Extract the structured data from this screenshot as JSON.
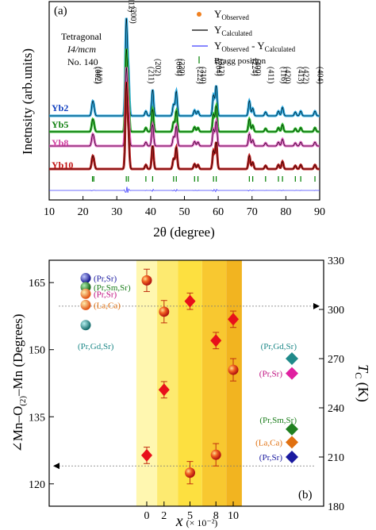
{
  "chart_data": [
    {
      "type": "line",
      "panel_label": "(a)",
      "xlabel": "2θ (degree)",
      "ylabel": "Inetnsity (arb.units)",
      "xlim": [
        10,
        90
      ],
      "xticks": [
        10,
        20,
        30,
        40,
        50,
        60,
        70,
        80,
        90
      ],
      "structure_lines": [
        "Tetragonal",
        "I4/mcm",
        "No. 140"
      ],
      "legend": {
        "placement": "top-right",
        "entries": [
          {
            "main": "Y",
            "sub": "Observed",
            "tail": "",
            "tail_sub": "",
            "marker": "dot",
            "color": "#f08020"
          },
          {
            "main": "Y",
            "sub": "Calculated",
            "tail": "",
            "tail_sub": "",
            "marker": "line",
            "color": "#000000"
          },
          {
            "main": "Y",
            "sub": "Observed",
            "tail": " - Y",
            "tail_sub": "Calculated",
            "marker": "line",
            "color": "#4040ff"
          },
          {
            "main": "Bragg position",
            "sub": "",
            "tail": "",
            "tail_sub": "",
            "marker": "tick",
            "color": "#008000"
          }
        ]
      },
      "series": [
        {
          "name": "Yb2",
          "color": "#2aa8e0",
          "label_color": "#1040c0",
          "baseline": 0.0
        },
        {
          "name": "Yb5",
          "color": "#30c030",
          "label_color": "#108010",
          "baseline": 1.0
        },
        {
          "name": "Yb8",
          "color": "#e060c0",
          "label_color": "#d040a0",
          "baseline": 2.0
        },
        {
          "name": "Yb10",
          "color": "#c02020",
          "label_color": "#c01010",
          "baseline": 3.0
        }
      ],
      "peaks": [
        {
          "hkl": "(002)",
          "two_theta": 22.8,
          "rel_intensity": 0.12
        },
        {
          "hkl": "(110)",
          "two_theta": 23.2,
          "rel_intensity": 0.08
        },
        {
          "hkl": "(112)",
          "two_theta": 32.8,
          "rel_intensity": 1.0
        },
        {
          "hkl": "(200)",
          "two_theta": 33.4,
          "rel_intensity": 0.45
        },
        {
          "hkl": "(211)",
          "two_theta": 38.6,
          "rel_intensity": 0.05
        },
        {
          "hkl": "(202)",
          "two_theta": 40.6,
          "rel_intensity": 0.28
        },
        {
          "hkl": "(004)",
          "two_theta": 46.8,
          "rel_intensity": 0.12
        },
        {
          "hkl": "(220)",
          "two_theta": 47.6,
          "rel_intensity": 0.26
        },
        {
          "hkl": "(222)",
          "two_theta": 53.0,
          "rel_intensity": 0.06
        },
        {
          "hkl": "(310)",
          "two_theta": 54.0,
          "rel_intensity": 0.05
        },
        {
          "hkl": "(204)",
          "two_theta": 58.6,
          "rel_intensity": 0.22
        },
        {
          "hkl": "(312)",
          "two_theta": 59.4,
          "rel_intensity": 0.32
        },
        {
          "hkl": "(224)",
          "two_theta": 69.2,
          "rel_intensity": 0.16
        },
        {
          "hkl": "(400)",
          "two_theta": 70.2,
          "rel_intensity": 0.08
        },
        {
          "hkl": "(411)",
          "two_theta": 74.0,
          "rel_intensity": 0.04
        },
        {
          "hkl": "(116)",
          "two_theta": 77.8,
          "rel_intensity": 0.05
        },
        {
          "hkl": "(420)",
          "two_theta": 79.0,
          "rel_intensity": 0.09
        },
        {
          "hkl": "(413)",
          "two_theta": 82.8,
          "rel_intensity": 0.04
        },
        {
          "hkl": "(422)",
          "two_theta": 84.4,
          "rel_intensity": 0.05
        },
        {
          "hkl": "(404)",
          "two_theta": 88.6,
          "rel_intensity": 0.05
        }
      ]
    },
    {
      "type": "scatter",
      "panel_label": "(b)",
      "x_categories": [
        "0",
        "2",
        "5",
        "8",
        "10"
      ],
      "x_values": [
        0,
        2,
        5,
        8,
        10
      ],
      "xlabel_main": "x",
      "xlabel_unit": "(× 10⁻²)",
      "ylabel_left": "∠Mn–O",
      "ylabel_left_sub": "(2)",
      "ylabel_left_tail": "–Mn (Degrees)",
      "ylim_left": [
        115,
        170
      ],
      "yticks_left": [
        120,
        135,
        150,
        165
      ],
      "ylabel_right": "T",
      "ylabel_right_sub": "C",
      "ylabel_right_tail": " (K)",
      "ylim_right": [
        180,
        330
      ],
      "yticks_right": [
        180,
        210,
        240,
        270,
        300,
        330
      ],
      "series": [
        {
          "name": "Mn-O-Mn angle",
          "axis": "left",
          "marker": "sphere",
          "values": [
            165.5,
            158.5,
            122.5,
            126.5,
            145.5
          ],
          "errors": [
            2.5,
            2.5,
            2.5,
            2.5,
            2.5
          ]
        },
        {
          "name": "Mn-O-Mn angle",
          "axis": "left",
          "marker": "sphere",
          "x_override": [
            0,
            2,
            5,
            8,
            10
          ],
          "values": [
            165.5,
            158.5,
            123.5,
            126.5,
            145.5
          ],
          "errors": [
            2.5,
            2.5,
            2.5,
            2.5,
            2.5
          ],
          "hidden": true
        },
        {
          "name": "Tc",
          "axis": "right",
          "marker": "diamond",
          "values": [
            211,
            251,
            305,
            281,
            294
          ],
          "errors": [
            5,
            5,
            5,
            5,
            5
          ]
        }
      ],
      "reference_compounds_left": [
        {
          "label": "(Pr,Sr)",
          "value": 166.0,
          "color": "#1a1aa0",
          "text_color": "#1a1aa0"
        },
        {
          "label": "(Pr,Sm,Sr)",
          "value": 164.0,
          "color": "#208020",
          "text_color": "#208020"
        },
        {
          "label": "(Pr,Sr)",
          "value": 162.5,
          "color": "#e07010",
          "text_color": "#c01080"
        },
        {
          "label": "(La,Ca)",
          "value": 160.0,
          "color": "#e07010",
          "text_color": "#e07010"
        },
        {
          "label": "(Pr,Gd,Sr)",
          "value": 155.5,
          "color": "#208a8a",
          "text_color": "#208a8a"
        }
      ],
      "reference_compounds_right": [
        {
          "label": "(Pr,Gd,Sr)",
          "value": 270,
          "color": "#208a8a",
          "text_color": "#208a8a"
        },
        {
          "label": "(Pr,Sr)",
          "value": 261,
          "color": "#e020a0",
          "text_color": "#c01080"
        },
        {
          "label": "(Pr,Sm,Sr)",
          "value": 227,
          "color": "#208020",
          "text_color": "#208020"
        },
        {
          "label": "(La,Ca)",
          "value": 219,
          "color": "#e07010",
          "text_color": "#e07010"
        },
        {
          "label": "(Pr,Sr)",
          "value": 210,
          "color": "#1a1aa0",
          "text_color": "#1a1aa0"
        }
      ],
      "guide_lines": [
        {
          "axis": "left",
          "value": 124.0,
          "arrow": "left"
        },
        {
          "axis": "right",
          "value": 302.0,
          "arrow": "right"
        }
      ],
      "bands": [
        {
          "from": -1.2,
          "to": 1.2,
          "color": "#fff7b0"
        },
        {
          "from": 1.2,
          "to": 3.6,
          "color": "#fdea70"
        },
        {
          "from": 3.6,
          "to": 6.4,
          "color": "#fde040"
        },
        {
          "from": 6.4,
          "to": 9.2,
          "color": "#f8c830"
        },
        {
          "from": 9.2,
          "to": 11.0,
          "color": "#f2b420"
        }
      ]
    }
  ]
}
